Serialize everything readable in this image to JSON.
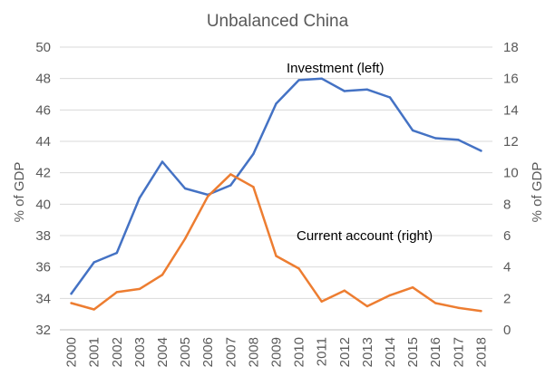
{
  "chart_data": {
    "type": "line",
    "title": "Unbalanced China",
    "ylabel_left": "% of GDP",
    "ylabel_right": "% of GDP",
    "ylim_left": [
      32,
      50
    ],
    "yticks_left": [
      32,
      34,
      36,
      38,
      40,
      42,
      44,
      46,
      48,
      50
    ],
    "ylim_right": [
      0,
      18
    ],
    "yticks_right": [
      0,
      2,
      4,
      6,
      8,
      10,
      12,
      14,
      16,
      18
    ],
    "grid": true,
    "categories": [
      "2000",
      "2001",
      "2002",
      "2003",
      "2004",
      "2005",
      "2006",
      "2007",
      "2008",
      "2009",
      "2010",
      "2011",
      "2012",
      "2013",
      "2014",
      "2015",
      "2016",
      "2017",
      "2018"
    ],
    "series": [
      {
        "name": "Investment (left)",
        "axis": "left",
        "color": "#4472C4",
        "values": [
          34.3,
          36.3,
          36.9,
          40.4,
          42.7,
          41.0,
          40.6,
          41.2,
          43.2,
          46.4,
          47.9,
          48.0,
          47.2,
          47.3,
          46.8,
          44.7,
          44.2,
          44.1,
          43.4
        ]
      },
      {
        "name": "Current account (right)",
        "axis": "right",
        "color": "#ED7D31",
        "values": [
          1.7,
          1.3,
          2.4,
          2.6,
          3.5,
          5.8,
          8.5,
          9.9,
          9.1,
          4.7,
          3.9,
          1.8,
          2.5,
          1.5,
          2.2,
          2.7,
          1.7,
          1.4,
          1.2
        ]
      }
    ]
  }
}
